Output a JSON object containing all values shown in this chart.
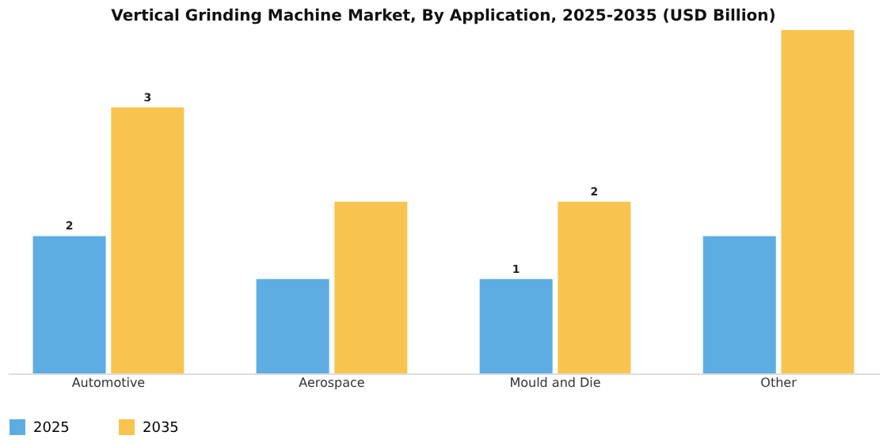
{
  "chart_data": {
    "type": "bar",
    "title": "Vertical Grinding Machine Market, By Application, 2025-2035 (USD Billion)",
    "categories": [
      "Automotive",
      "Aerospace",
      "Mould and Die",
      "Other"
    ],
    "series": [
      {
        "name": "2025",
        "color": "#5dade2",
        "values": [
          1.6,
          1.1,
          1.1,
          1.6
        ],
        "value_labels": [
          "2",
          null,
          "1",
          null
        ]
      },
      {
        "name": "2035",
        "color": "#f8c44f",
        "values": [
          3.1,
          2.0,
          2.0,
          4.0
        ],
        "value_labels": [
          "3",
          null,
          "2",
          null
        ]
      }
    ],
    "legend": "bottom",
    "grid": false
  }
}
